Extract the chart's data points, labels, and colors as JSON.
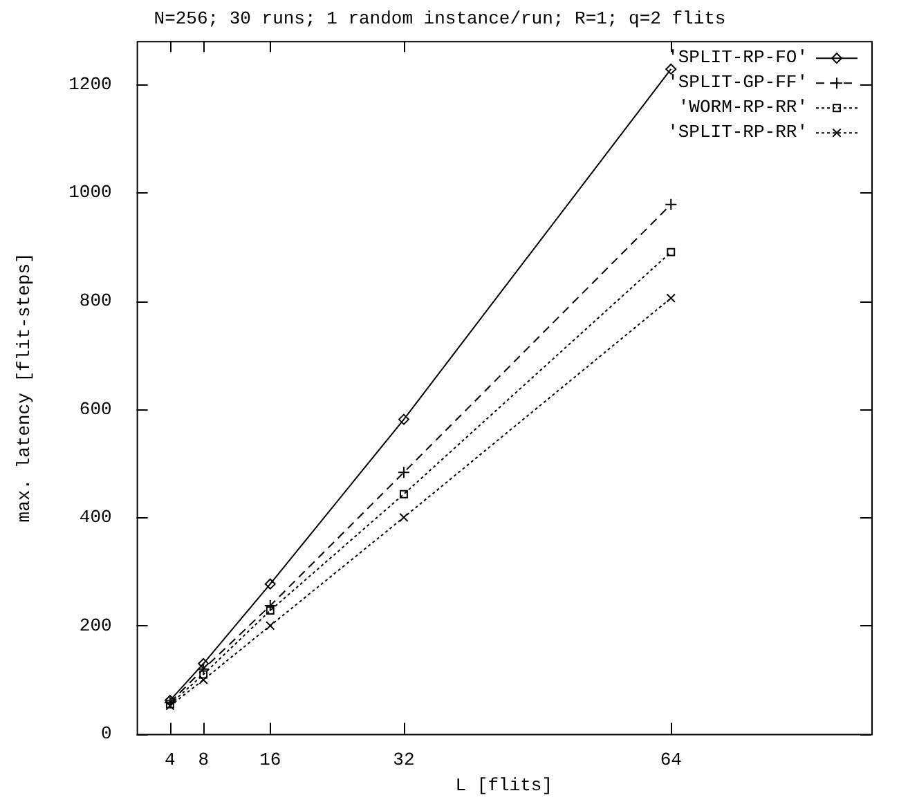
{
  "chart_data": {
    "type": "line",
    "title": "N=256; 30 runs; 1 random instance/run; R=1; q=2 flits",
    "xlabel": "L [flits]",
    "ylabel": "max. latency [flit-steps]",
    "x": [
      4,
      8,
      16,
      32,
      64
    ],
    "series": [
      {
        "name": "'SPLIT-RP-FO'",
        "color": "#000000",
        "marker": "diamond",
        "line_style": "solid",
        "values": [
          62,
          130,
          277,
          581,
          1228
        ]
      },
      {
        "name": "'SPLIT-GP-FF'",
        "color": "#000000",
        "marker": "cross",
        "line_style": "dashed",
        "values": [
          58,
          120,
          237,
          483,
          978
        ]
      },
      {
        "name": "'WORM-RP-RR'",
        "color": "#000000",
        "marker": "square",
        "line_style": "dotted",
        "values": [
          55,
          110,
          228,
          443,
          890
        ]
      },
      {
        "name": "'SPLIT-RP-RR'",
        "color": "#000000",
        "marker": "x",
        "line_style": "dotted",
        "values": [
          52,
          100,
          200,
          400,
          805
        ]
      }
    ],
    "xlim": [
      0,
      88
    ],
    "xticks": [
      4,
      8,
      16,
      32,
      64
    ],
    "ylim": [
      0,
      1280
    ],
    "yticks": [
      0,
      200,
      400,
      600,
      800,
      1000,
      1200
    ],
    "grid": false,
    "legend": "top right"
  }
}
